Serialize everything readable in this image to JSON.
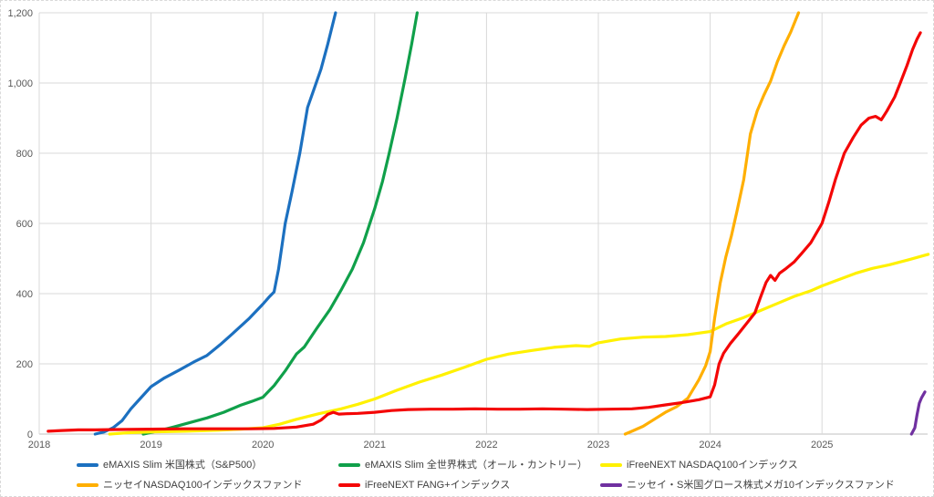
{
  "chart_data": {
    "type": "line",
    "title": "",
    "grid": true,
    "legend_position": "bottom",
    "x_axis": {
      "min": 2018,
      "max": 2025.95,
      "ticks": [
        {
          "v": 2018,
          "label": "2018"
        },
        {
          "v": 2019,
          "label": "2019"
        },
        {
          "v": 2020,
          "label": "2020"
        },
        {
          "v": 2021,
          "label": "2021"
        },
        {
          "v": 2022,
          "label": "2022"
        },
        {
          "v": 2023,
          "label": "2023"
        },
        {
          "v": 2024,
          "label": "2024"
        },
        {
          "v": 2025,
          "label": "2025"
        }
      ]
    },
    "y_axis": {
      "min": 0,
      "max": 1200,
      "ticks": [
        {
          "v": 0,
          "label": "0"
        },
        {
          "v": 200,
          "label": "200"
        },
        {
          "v": 400,
          "label": "400"
        },
        {
          "v": 600,
          "label": "600"
        },
        {
          "v": 800,
          "label": "800"
        },
        {
          "v": 1000,
          "label": "1,000"
        },
        {
          "v": 1200,
          "label": "1,200"
        }
      ]
    },
    "series": [
      {
        "name": "eMAXIS Slim 米国株式（S&P500）",
        "color": "#1C70C0",
        "points": [
          [
            2018.5,
            0
          ],
          [
            2018.58,
            6
          ],
          [
            2018.66,
            18
          ],
          [
            2018.74,
            38
          ],
          [
            2018.82,
            72
          ],
          [
            2018.9,
            100
          ],
          [
            2019.0,
            135
          ],
          [
            2019.12,
            160
          ],
          [
            2019.25,
            182
          ],
          [
            2019.38,
            205
          ],
          [
            2019.5,
            224
          ],
          [
            2019.62,
            255
          ],
          [
            2019.75,
            292
          ],
          [
            2019.88,
            330
          ],
          [
            2020.0,
            370
          ],
          [
            2020.06,
            392
          ],
          [
            2020.1,
            405
          ],
          [
            2020.14,
            470
          ],
          [
            2020.2,
            600
          ],
          [
            2020.26,
            690
          ],
          [
            2020.33,
            800
          ],
          [
            2020.4,
            930
          ],
          [
            2020.46,
            985
          ],
          [
            2020.52,
            1040
          ],
          [
            2020.58,
            1110
          ],
          [
            2020.65,
            1200
          ]
        ]
      },
      {
        "name": "eMAXIS Slim 全世界株式（オール・カントリー）",
        "color": "#10A04A",
        "points": [
          [
            2018.93,
            0
          ],
          [
            2019.05,
            8
          ],
          [
            2019.2,
            20
          ],
          [
            2019.35,
            33
          ],
          [
            2019.5,
            46
          ],
          [
            2019.65,
            62
          ],
          [
            2019.8,
            82
          ],
          [
            2019.9,
            93
          ],
          [
            2020.0,
            105
          ],
          [
            2020.1,
            138
          ],
          [
            2020.2,
            180
          ],
          [
            2020.3,
            228
          ],
          [
            2020.37,
            248
          ],
          [
            2020.48,
            300
          ],
          [
            2020.6,
            355
          ],
          [
            2020.7,
            410
          ],
          [
            2020.8,
            470
          ],
          [
            2020.9,
            545
          ],
          [
            2021.0,
            642
          ],
          [
            2021.07,
            720
          ],
          [
            2021.13,
            800
          ],
          [
            2021.2,
            900
          ],
          [
            2021.27,
            1010
          ],
          [
            2021.33,
            1110
          ],
          [
            2021.38,
            1200
          ]
        ]
      },
      {
        "name": "iFreeNEXT NASDAQ100インデックス",
        "color": "#FFF100",
        "points": [
          [
            2018.63,
            0
          ],
          [
            2018.8,
            4
          ],
          [
            2019.0,
            6
          ],
          [
            2019.3,
            8
          ],
          [
            2019.6,
            11
          ],
          [
            2019.8,
            14
          ],
          [
            2020.0,
            18
          ],
          [
            2020.15,
            28
          ],
          [
            2020.3,
            42
          ],
          [
            2020.5,
            58
          ],
          [
            2020.7,
            72
          ],
          [
            2020.85,
            85
          ],
          [
            2021.0,
            100
          ],
          [
            2021.2,
            125
          ],
          [
            2021.4,
            148
          ],
          [
            2021.6,
            168
          ],
          [
            2021.8,
            190
          ],
          [
            2022.0,
            213
          ],
          [
            2022.2,
            228
          ],
          [
            2022.4,
            238
          ],
          [
            2022.6,
            247
          ],
          [
            2022.8,
            252
          ],
          [
            2022.92,
            250
          ],
          [
            2023.0,
            260
          ],
          [
            2023.2,
            271
          ],
          [
            2023.4,
            276
          ],
          [
            2023.6,
            278
          ],
          [
            2023.8,
            283
          ],
          [
            2024.0,
            292
          ],
          [
            2024.15,
            315
          ],
          [
            2024.3,
            332
          ],
          [
            2024.45,
            352
          ],
          [
            2024.6,
            372
          ],
          [
            2024.75,
            392
          ],
          [
            2024.9,
            408
          ],
          [
            2025.0,
            422
          ],
          [
            2025.15,
            440
          ],
          [
            2025.3,
            458
          ],
          [
            2025.45,
            472
          ],
          [
            2025.6,
            482
          ],
          [
            2025.78,
            497
          ],
          [
            2025.95,
            512
          ]
        ]
      },
      {
        "name": "ニッセイNASDAQ100インデックスファンド",
        "color": "#FFAF00",
        "points": [
          [
            2023.24,
            0
          ],
          [
            2023.3,
            8
          ],
          [
            2023.4,
            22
          ],
          [
            2023.5,
            42
          ],
          [
            2023.6,
            62
          ],
          [
            2023.7,
            78
          ],
          [
            2023.8,
            102
          ],
          [
            2023.9,
            155
          ],
          [
            2023.96,
            195
          ],
          [
            2024.0,
            235
          ],
          [
            2024.04,
            330
          ],
          [
            2024.09,
            430
          ],
          [
            2024.14,
            505
          ],
          [
            2024.19,
            565
          ],
          [
            2024.24,
            635
          ],
          [
            2024.3,
            725
          ],
          [
            2024.36,
            855
          ],
          [
            2024.42,
            920
          ],
          [
            2024.48,
            965
          ],
          [
            2024.54,
            1005
          ],
          [
            2024.6,
            1060
          ],
          [
            2024.66,
            1105
          ],
          [
            2024.72,
            1145
          ],
          [
            2024.79,
            1200
          ]
        ]
      },
      {
        "name": "iFreeNEXT FANG+インデックス",
        "color": "#F40606",
        "points": [
          [
            2018.08,
            8
          ],
          [
            2018.2,
            10
          ],
          [
            2018.35,
            12
          ],
          [
            2018.5,
            12
          ],
          [
            2018.7,
            13
          ],
          [
            2019.0,
            14
          ],
          [
            2019.3,
            15
          ],
          [
            2019.6,
            15
          ],
          [
            2019.9,
            15
          ],
          [
            2020.1,
            16
          ],
          [
            2020.3,
            20
          ],
          [
            2020.45,
            28
          ],
          [
            2020.52,
            40
          ],
          [
            2020.58,
            56
          ],
          [
            2020.63,
            62
          ],
          [
            2020.68,
            57
          ],
          [
            2020.75,
            58
          ],
          [
            2020.85,
            59
          ],
          [
            2021.0,
            62
          ],
          [
            2021.15,
            67
          ],
          [
            2021.3,
            70
          ],
          [
            2021.5,
            71
          ],
          [
            2021.7,
            71
          ],
          [
            2021.9,
            72
          ],
          [
            2022.1,
            71
          ],
          [
            2022.3,
            71
          ],
          [
            2022.5,
            72
          ],
          [
            2022.7,
            71
          ],
          [
            2022.9,
            70
          ],
          [
            2023.1,
            71
          ],
          [
            2023.3,
            72
          ],
          [
            2023.45,
            76
          ],
          [
            2023.6,
            83
          ],
          [
            2023.75,
            90
          ],
          [
            2023.9,
            98
          ],
          [
            2024.0,
            106
          ],
          [
            2024.04,
            140
          ],
          [
            2024.08,
            200
          ],
          [
            2024.12,
            230
          ],
          [
            2024.18,
            258
          ],
          [
            2024.25,
            285
          ],
          [
            2024.33,
            317
          ],
          [
            2024.4,
            345
          ],
          [
            2024.45,
            390
          ],
          [
            2024.5,
            432
          ],
          [
            2024.54,
            452
          ],
          [
            2024.58,
            438
          ],
          [
            2024.62,
            458
          ],
          [
            2024.68,
            472
          ],
          [
            2024.75,
            490
          ],
          [
            2024.82,
            515
          ],
          [
            2024.9,
            545
          ],
          [
            2025.0,
            600
          ],
          [
            2025.06,
            660
          ],
          [
            2025.12,
            725
          ],
          [
            2025.2,
            800
          ],
          [
            2025.28,
            845
          ],
          [
            2025.35,
            880
          ],
          [
            2025.42,
            900
          ],
          [
            2025.48,
            905
          ],
          [
            2025.53,
            895
          ],
          [
            2025.58,
            920
          ],
          [
            2025.65,
            960
          ],
          [
            2025.7,
            1000
          ],
          [
            2025.76,
            1050
          ],
          [
            2025.81,
            1095
          ],
          [
            2025.85,
            1125
          ],
          [
            2025.88,
            1143
          ]
        ]
      },
      {
        "name": "ニッセイ・S米国グロース株式メガ10インデックスファンド",
        "color": "#7030A0",
        "points": [
          [
            2025.8,
            0
          ],
          [
            2025.83,
            18
          ],
          [
            2025.85,
            55
          ],
          [
            2025.87,
            88
          ],
          [
            2025.89,
            103
          ],
          [
            2025.92,
            120
          ]
        ]
      }
    ]
  },
  "colors": {
    "grid": "#D9D9D9",
    "axis_line": "#C0C0C0",
    "tick_text": "#595959",
    "legend_text": "#404040",
    "background": "#FFFFFF",
    "border": "#D9D9D9"
  }
}
